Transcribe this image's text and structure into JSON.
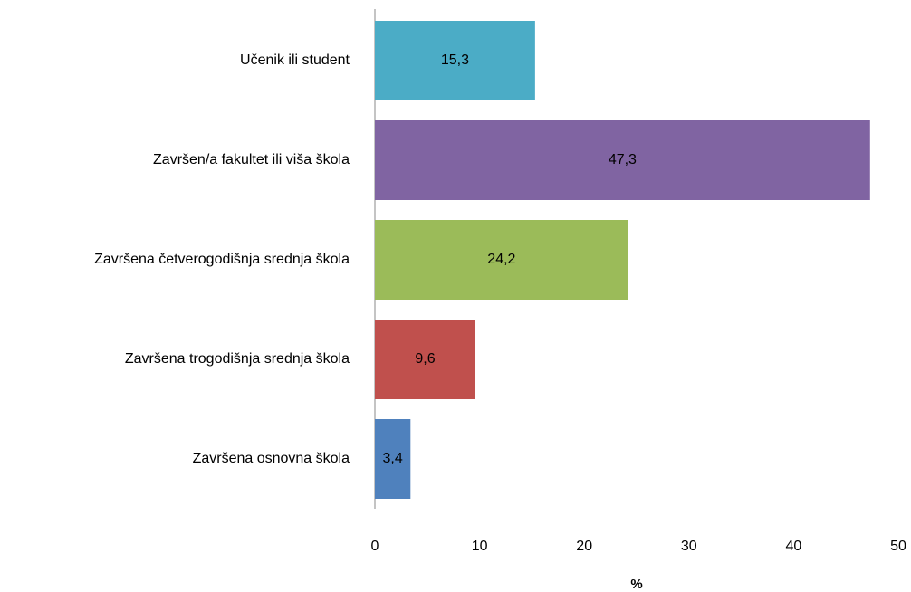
{
  "chart_data": {
    "type": "bar",
    "orientation": "horizontal",
    "categories": [
      "Učenik ili student",
      "Završen/a fakultet ili viša škola",
      "Završena četverogodišnja srednja škola",
      "Završena trogodišnja srednja škola",
      "Završena osnovna škola"
    ],
    "values": [
      15.3,
      47.3,
      24.2,
      9.6,
      3.4
    ],
    "value_labels": [
      "15,3",
      "47,3",
      "24,2",
      "9,6",
      "3,4"
    ],
    "colors": [
      "#4bacc6",
      "#8064a2",
      "#9bbb59",
      "#c0504d",
      "#4f81bd"
    ],
    "xlim": [
      0,
      50
    ],
    "xticks": [
      0,
      10,
      20,
      30,
      40,
      50
    ],
    "x_label": "%",
    "grid": false
  }
}
